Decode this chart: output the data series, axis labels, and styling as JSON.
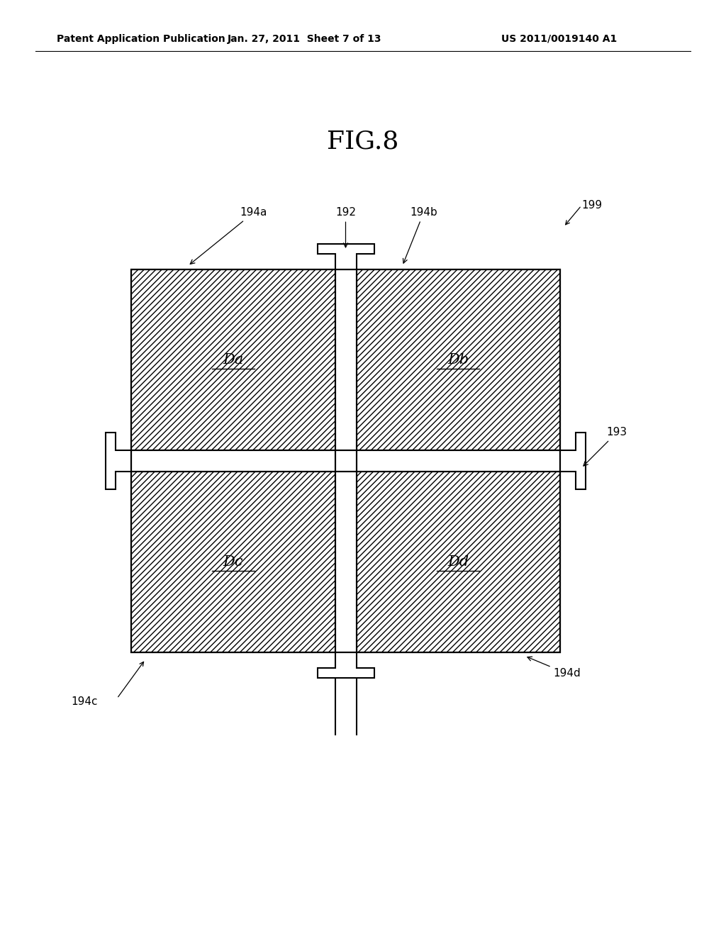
{
  "fig_title": "FIG.8",
  "header_left": "Patent Application Publication",
  "header_center": "Jan. 27, 2011  Sheet 7 of 13",
  "header_right": "US 2011/0019140 A1",
  "background_color": "#ffffff",
  "label_199": "199",
  "label_192": "192",
  "label_193": "193",
  "label_194a": "194a",
  "label_194b": "194b",
  "label_194c": "194c",
  "label_194d": "194d",
  "label_Da": "Da",
  "label_Db": "Db",
  "label_Dc": "Dc",
  "label_Dd": "Dd",
  "font_size_header": 10,
  "font_size_fig": 26,
  "font_size_label": 11,
  "font_size_region": 15
}
